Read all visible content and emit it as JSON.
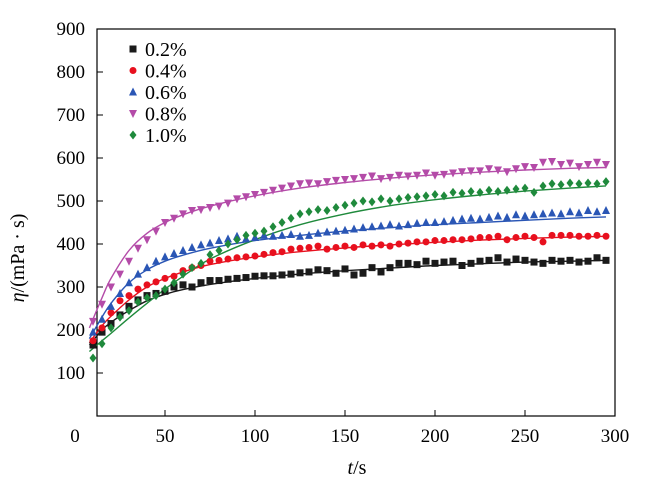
{
  "chart_data": {
    "type": "scatter",
    "title": "",
    "xlabel": {
      "italic": "t",
      "rest": "/s"
    },
    "ylabel": {
      "italic": "η",
      "rest": "/(mPa · s)"
    },
    "xlim": [
      0,
      300
    ],
    "ylim": [
      0,
      900
    ],
    "xticks": [
      0,
      50,
      100,
      150,
      200,
      250,
      300
    ],
    "yticks": [
      100,
      200,
      300,
      400,
      500,
      600,
      700,
      800,
      900
    ],
    "grid": false,
    "legend_position": "top-left",
    "series": [
      {
        "name": "0.2%",
        "color": "#1a1a1a",
        "marker": "square",
        "x": [
          10,
          15,
          20,
          25,
          30,
          35,
          40,
          45,
          50,
          55,
          60,
          65,
          70,
          75,
          80,
          85,
          90,
          95,
          100,
          105,
          110,
          115,
          120,
          125,
          130,
          135,
          140,
          145,
          150,
          155,
          160,
          165,
          170,
          175,
          180,
          185,
          190,
          195,
          200,
          205,
          210,
          215,
          220,
          225,
          230,
          235,
          240,
          245,
          250,
          255,
          260,
          265,
          270,
          275,
          280,
          285,
          290,
          295
        ],
        "values": [
          165,
          195,
          215,
          235,
          255,
          270,
          280,
          285,
          290,
          300,
          305,
          300,
          310,
          315,
          315,
          318,
          320,
          322,
          325,
          326,
          326,
          328,
          330,
          333,
          335,
          340,
          338,
          332,
          342,
          328,
          332,
          345,
          335,
          345,
          355,
          355,
          352,
          360,
          355,
          358,
          360,
          350,
          355,
          360,
          362,
          368,
          358,
          365,
          362,
          358,
          355,
          362,
          360,
          362,
          358,
          360,
          368,
          362
        ],
        "fit": [
          [
            8,
            165
          ],
          [
            15,
            200
          ],
          [
            20,
            218
          ],
          [
            30,
            245
          ],
          [
            40,
            268
          ],
          [
            50,
            283
          ],
          [
            60,
            294
          ],
          [
            75,
            306
          ],
          [
            100,
            320
          ],
          [
            125,
            330
          ],
          [
            150,
            338
          ],
          [
            175,
            344
          ],
          [
            200,
            350
          ],
          [
            225,
            354
          ],
          [
            250,
            358
          ],
          [
            275,
            360
          ],
          [
            295,
            362
          ]
        ]
      },
      {
        "name": "0.4%",
        "color": "#e8101e",
        "marker": "circle",
        "x": [
          10,
          15,
          20,
          25,
          30,
          35,
          40,
          45,
          50,
          55,
          60,
          65,
          70,
          75,
          80,
          85,
          90,
          95,
          100,
          105,
          110,
          115,
          120,
          125,
          130,
          135,
          140,
          145,
          150,
          155,
          160,
          165,
          170,
          175,
          180,
          185,
          190,
          195,
          200,
          205,
          210,
          215,
          220,
          225,
          230,
          235,
          240,
          245,
          250,
          255,
          260,
          265,
          270,
          275,
          280,
          285,
          290,
          295
        ],
        "values": [
          175,
          205,
          240,
          268,
          280,
          295,
          305,
          312,
          320,
          325,
          338,
          345,
          350,
          360,
          362,
          365,
          368,
          370,
          372,
          376,
          380,
          382,
          388,
          390,
          392,
          395,
          388,
          392,
          395,
          392,
          398,
          395,
          398,
          395,
          400,
          402,
          405,
          405,
          408,
          408,
          410,
          410,
          412,
          415,
          415,
          418,
          410,
          415,
          418,
          415,
          405,
          420,
          420,
          420,
          418,
          418,
          420,
          418
        ],
        "fit": [
          [
            8,
            170
          ],
          [
            15,
            210
          ],
          [
            20,
            232
          ],
          [
            30,
            270
          ],
          [
            40,
            300
          ],
          [
            50,
            320
          ],
          [
            60,
            335
          ],
          [
            75,
            352
          ],
          [
            100,
            370
          ],
          [
            125,
            382
          ],
          [
            150,
            391
          ],
          [
            175,
            398
          ],
          [
            200,
            404
          ],
          [
            225,
            409
          ],
          [
            250,
            413
          ],
          [
            275,
            416
          ],
          [
            295,
            418
          ]
        ]
      },
      {
        "name": "0.6%",
        "color": "#2a56b5",
        "marker": "triangle-up",
        "x": [
          10,
          15,
          20,
          25,
          30,
          35,
          40,
          45,
          50,
          55,
          60,
          65,
          70,
          75,
          80,
          85,
          90,
          95,
          100,
          105,
          110,
          115,
          120,
          125,
          130,
          135,
          140,
          145,
          150,
          155,
          160,
          165,
          170,
          175,
          180,
          185,
          190,
          195,
          200,
          205,
          210,
          215,
          220,
          225,
          230,
          235,
          240,
          245,
          250,
          255,
          260,
          265,
          270,
          275,
          280,
          285,
          290,
          295
        ],
        "values": [
          195,
          225,
          255,
          285,
          310,
          330,
          345,
          360,
          370,
          378,
          385,
          392,
          398,
          402,
          408,
          412,
          418,
          412,
          415,
          420,
          418,
          420,
          422,
          418,
          420,
          425,
          428,
          430,
          432,
          435,
          438,
          440,
          442,
          445,
          442,
          445,
          448,
          450,
          450,
          452,
          455,
          458,
          460,
          458,
          462,
          465,
          462,
          468,
          465,
          468,
          470,
          472,
          470,
          475,
          472,
          478,
          475,
          478
        ],
        "fit": [
          [
            8,
            180
          ],
          [
            15,
            230
          ],
          [
            20,
            262
          ],
          [
            30,
            310
          ],
          [
            40,
            340
          ],
          [
            50,
            360
          ],
          [
            60,
            374
          ],
          [
            75,
            390
          ],
          [
            100,
            408
          ],
          [
            125,
            420
          ],
          [
            150,
            430
          ],
          [
            175,
            438
          ],
          [
            200,
            445
          ],
          [
            225,
            450
          ],
          [
            250,
            455
          ],
          [
            275,
            460
          ],
          [
            295,
            463
          ]
        ]
      },
      {
        "name": "0.8%",
        "color": "#b44ba8",
        "marker": "triangle-down",
        "x": [
          10,
          15,
          20,
          25,
          30,
          35,
          40,
          45,
          50,
          55,
          60,
          65,
          70,
          75,
          80,
          85,
          90,
          95,
          100,
          105,
          110,
          115,
          120,
          125,
          130,
          135,
          140,
          145,
          150,
          155,
          160,
          165,
          170,
          175,
          180,
          185,
          190,
          195,
          200,
          205,
          210,
          215,
          220,
          225,
          230,
          235,
          240,
          245,
          250,
          255,
          260,
          265,
          270,
          275,
          280,
          285,
          290,
          295
        ],
        "values": [
          220,
          260,
          300,
          330,
          360,
          390,
          410,
          430,
          450,
          460,
          470,
          478,
          480,
          485,
          488,
          495,
          505,
          510,
          515,
          520,
          525,
          530,
          535,
          540,
          542,
          540,
          545,
          548,
          550,
          552,
          555,
          558,
          552,
          555,
          560,
          558,
          560,
          565,
          560,
          562,
          565,
          568,
          570,
          570,
          575,
          572,
          568,
          575,
          580,
          578,
          590,
          592,
          585,
          588,
          580,
          585,
          590,
          585
        ],
        "fit": [
          [
            8,
            205
          ],
          [
            15,
            275
          ],
          [
            20,
            320
          ],
          [
            30,
            385
          ],
          [
            40,
            425
          ],
          [
            50,
            450
          ],
          [
            60,
            468
          ],
          [
            75,
            488
          ],
          [
            100,
            512
          ],
          [
            125,
            530
          ],
          [
            150,
            543
          ],
          [
            175,
            553
          ],
          [
            200,
            561
          ],
          [
            225,
            567
          ],
          [
            250,
            572
          ],
          [
            275,
            576
          ],
          [
            295,
            578
          ]
        ]
      },
      {
        "name": "1.0%",
        "color": "#1f8a3c",
        "marker": "diamond",
        "x": [
          10,
          15,
          20,
          25,
          30,
          35,
          40,
          45,
          50,
          55,
          60,
          65,
          70,
          75,
          80,
          85,
          90,
          95,
          100,
          105,
          110,
          115,
          120,
          125,
          130,
          135,
          140,
          145,
          150,
          155,
          160,
          165,
          170,
          175,
          180,
          185,
          190,
          195,
          200,
          205,
          210,
          215,
          220,
          225,
          230,
          235,
          240,
          245,
          250,
          255,
          260,
          265,
          270,
          275,
          280,
          285,
          290,
          295
        ],
        "values": [
          135,
          168,
          205,
          230,
          245,
          265,
          275,
          280,
          295,
          310,
          330,
          345,
          355,
          375,
          385,
          400,
          410,
          420,
          425,
          430,
          440,
          450,
          460,
          470,
          475,
          480,
          478,
          485,
          490,
          495,
          500,
          498,
          505,
          500,
          505,
          508,
          510,
          512,
          515,
          512,
          520,
          518,
          522,
          520,
          525,
          522,
          525,
          528,
          530,
          520,
          535,
          540,
          538,
          542,
          540,
          542,
          540,
          545
        ],
        "fit": [
          [
            8,
            150
          ],
          [
            15,
            175
          ],
          [
            20,
            192
          ],
          [
            30,
            228
          ],
          [
            40,
            262
          ],
          [
            50,
            295
          ],
          [
            60,
            325
          ],
          [
            75,
            365
          ],
          [
            100,
            410
          ],
          [
            125,
            445
          ],
          [
            150,
            470
          ],
          [
            175,
            489
          ],
          [
            200,
            503
          ],
          [
            225,
            514
          ],
          [
            250,
            523
          ],
          [
            275,
            530
          ],
          [
            295,
            535
          ]
        ]
      }
    ]
  }
}
